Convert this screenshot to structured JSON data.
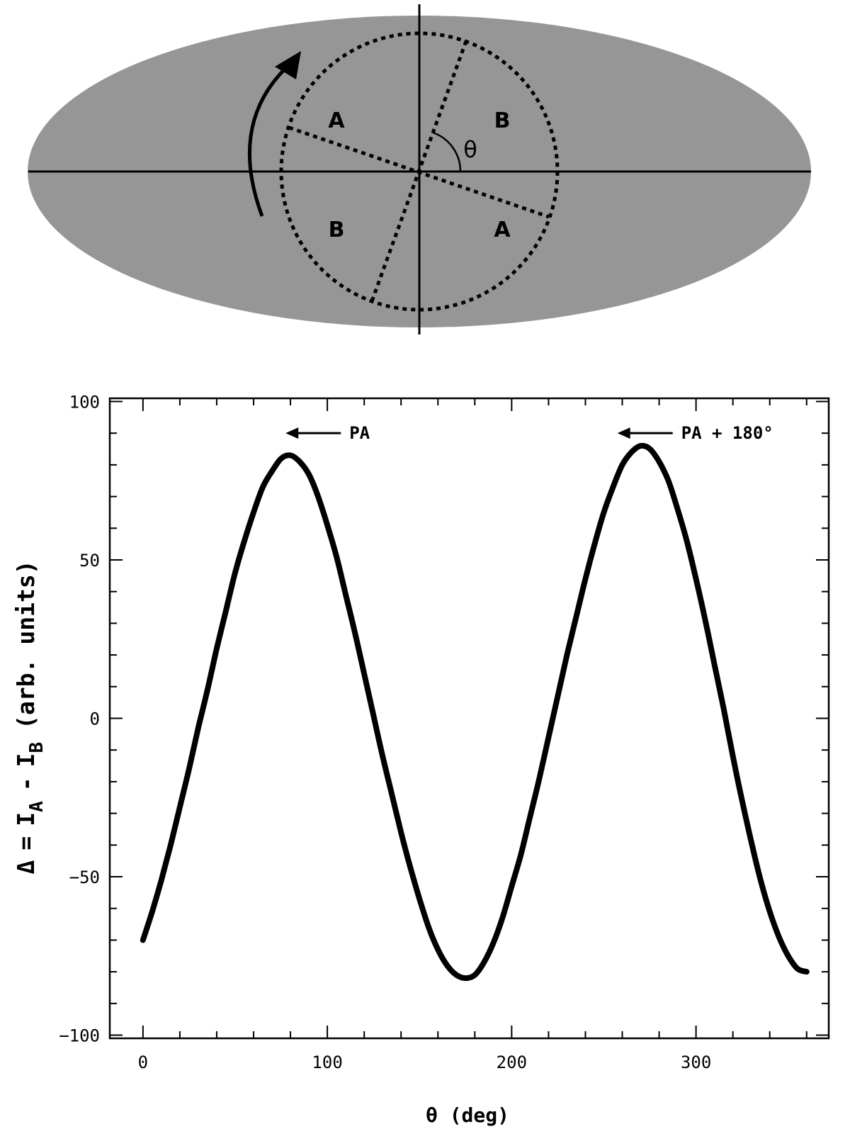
{
  "diagram": {
    "region_labels": [
      "A",
      "B",
      "B",
      "A"
    ],
    "angle_label": "θ",
    "colors": {
      "ellipse_fill": "#969696",
      "ink": "#000000"
    }
  },
  "chart_data": {
    "type": "line",
    "x_unit_label": "θ (deg)",
    "ylabel": {
      "delta": "Δ",
      "equals": "=",
      "term_a": "I",
      "sub_a": "A",
      "minus": "-",
      "term_b": "I",
      "sub_b": "B",
      "units": "(arb. units)"
    },
    "xlim": [
      -18,
      372
    ],
    "ylim": [
      -101,
      101
    ],
    "xticks": [
      0,
      100,
      200,
      300
    ],
    "yticks": [
      100,
      50,
      0,
      -50,
      -100
    ],
    "xtick_labels": [
      "0",
      "100",
      "200",
      "300"
    ],
    "ytick_labels": [
      "100",
      "50",
      "0",
      "−50",
      "−100"
    ],
    "grid": false,
    "series": [
      {
        "x": [
          0,
          5,
          10,
          15,
          20,
          25,
          30,
          35,
          40,
          45,
          50,
          55,
          60,
          65,
          70,
          75,
          80,
          85,
          90,
          95,
          100,
          105,
          110,
          115,
          120,
          125,
          130,
          135,
          140,
          145,
          150,
          155,
          160,
          165,
          170,
          175,
          180,
          185,
          190,
          195,
          200,
          205,
          210,
          215,
          220,
          225,
          230,
          235,
          240,
          245,
          250,
          255,
          260,
          265,
          270,
          275,
          280,
          285,
          290,
          295,
          300,
          305,
          310,
          315,
          320,
          325,
          330,
          335,
          340,
          345,
          350,
          355,
          360
        ],
        "y": [
          -70,
          -61,
          -51,
          -40,
          -28,
          -16,
          -3,
          9,
          22,
          34,
          46,
          56,
          65,
          73,
          78,
          82,
          83,
          81,
          77,
          70,
          61,
          51,
          39,
          27,
          14,
          1,
          -12,
          -24,
          -36,
          -47,
          -57,
          -66,
          -73,
          -78,
          -81,
          -82,
          -81,
          -77,
          -71,
          -63,
          -53,
          -43,
          -31,
          -19,
          -6,
          7,
          20,
          32,
          44,
          55,
          65,
          73,
          80,
          84,
          86,
          85,
          81,
          75,
          66,
          56,
          44,
          31,
          17,
          3,
          -12,
          -26,
          -39,
          -51,
          -61,
          -69,
          -75,
          -79,
          -80
        ],
        "color": "#000000"
      }
    ],
    "annotations": [
      {
        "text": "PA",
        "x": 72,
        "y": 90
      },
      {
        "text": "PA + 180°",
        "x": 252,
        "y": 90
      }
    ]
  }
}
